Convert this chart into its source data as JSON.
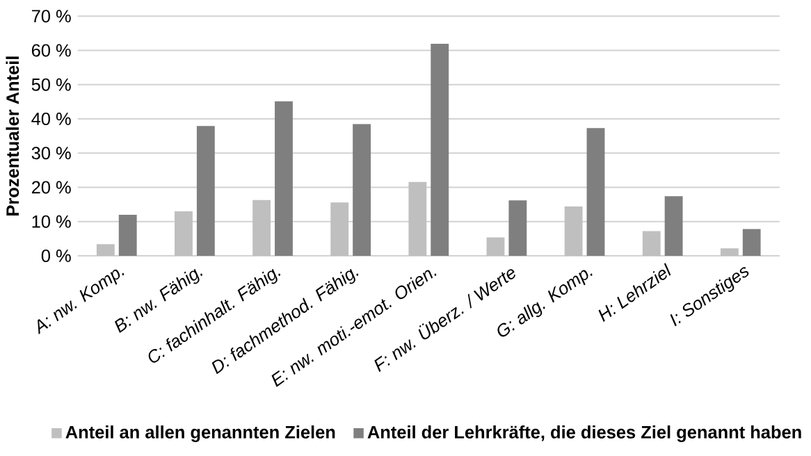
{
  "chart_data": {
    "type": "bar",
    "ylabel": "Prozentualer Anteil",
    "categories": [
      "A: nw. Komp.",
      "B: nw. Fähig.",
      "C: fachinhalt. Fähig.",
      "D: fachmethod. Fähig.",
      "E: nw. moti.-emot. Orien.",
      "F: nw. Überz. / Werte",
      "G: allg. Komp.",
      "H: Lehrziel",
      "I: Sonstiges"
    ],
    "series": [
      {
        "name": "Anteil an allen genannten Zielen",
        "color": "#bfbfbf",
        "values": [
          3.4,
          13.0,
          16.3,
          15.6,
          21.6,
          5.4,
          14.4,
          7.2,
          2.2
        ]
      },
      {
        "name": "Anteil der Lehrkräfte, die dieses Ziel genannt haben",
        "color": "#7f7f7f",
        "values": [
          12.0,
          37.9,
          45.1,
          38.5,
          61.9,
          16.2,
          37.3,
          17.4,
          7.8
        ]
      }
    ],
    "ylim": [
      0,
      70
    ],
    "yticks": [
      {
        "value": 0,
        "label": "0 %"
      },
      {
        "value": 10,
        "label": "10 %"
      },
      {
        "value": 20,
        "label": "20 %"
      },
      {
        "value": 30,
        "label": "30 %"
      },
      {
        "value": 40,
        "label": "40 %"
      },
      {
        "value": 50,
        "label": "50 %"
      },
      {
        "value": 60,
        "label": "60 %"
      },
      {
        "value": 70,
        "label": "70 %"
      }
    ],
    "grid": "y",
    "legend": "bottom"
  }
}
